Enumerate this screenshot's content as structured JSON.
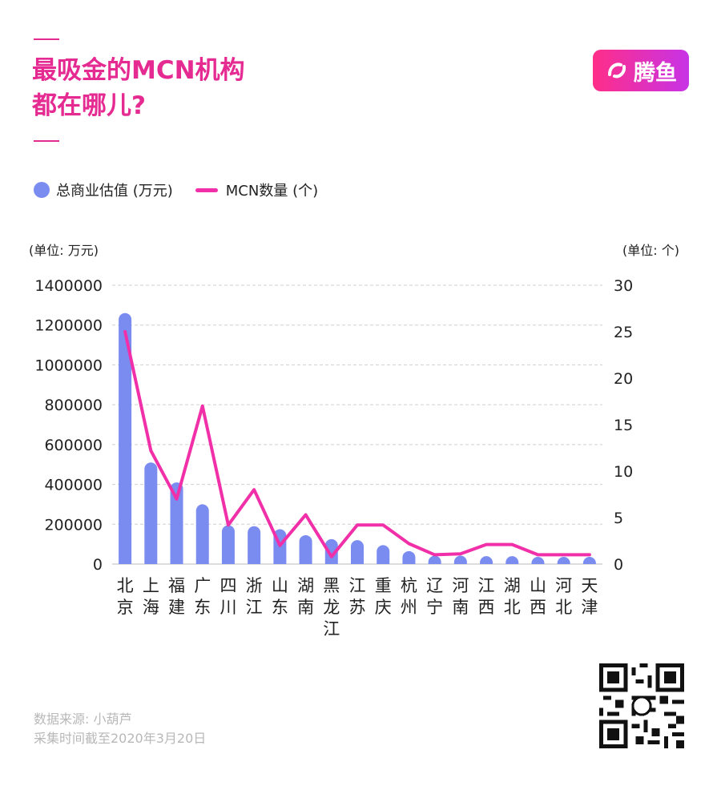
{
  "header": {
    "title_line1": "最吸金的MCN机构",
    "title_line2": "都在哪儿?",
    "logo_text": "腾鱼"
  },
  "legend": {
    "bar_label": "总商业估值 (万元)",
    "line_label": "MCN数量 (个)"
  },
  "footer": {
    "source": "数据来源: 小葫芦",
    "date": "采集时间截至2020年3月20日"
  },
  "colors": {
    "accent": "#e52a92",
    "bar": "#7b8cf0",
    "line": "#f02fa8"
  },
  "chart_data": {
    "type": "bar",
    "categories": [
      "北京",
      "上海",
      "福建",
      "广东",
      "四川",
      "浙江",
      "山东",
      "湖南",
      "黑龙江",
      "江苏",
      "重庆",
      "杭州",
      "辽宁",
      "河南",
      "江西",
      "湖北",
      "山西",
      "河北",
      "天津"
    ],
    "y_left_unit": "(单位: 万元)",
    "y_right_unit": "(单位: 个)",
    "ylim_left": [
      0,
      1400000
    ],
    "ylim_right": [
      0,
      30
    ],
    "yticks_left": [
      0,
      200000,
      400000,
      600000,
      800000,
      1000000,
      1200000,
      1400000
    ],
    "yticks_right": [
      0,
      5,
      10,
      15,
      20,
      25,
      30
    ],
    "grid": true,
    "series": [
      {
        "name": "总商业估值 (万元)",
        "kind": "bar",
        "axis": "left",
        "values": [
          1260000,
          510000,
          410000,
          300000,
          195000,
          190000,
          175000,
          145000,
          125000,
          120000,
          95000,
          65000,
          20000,
          20000,
          15000,
          15000,
          8000,
          8000,
          8000
        ]
      },
      {
        "name": "MCN数量 (个)",
        "kind": "line",
        "axis": "right",
        "values": [
          25,
          12.2,
          7,
          17,
          4.2,
          8,
          2,
          5.3,
          0.8,
          4.2,
          4.2,
          2.2,
          1,
          1.1,
          2.1,
          2.1,
          1,
          1,
          1
        ]
      }
    ]
  }
}
